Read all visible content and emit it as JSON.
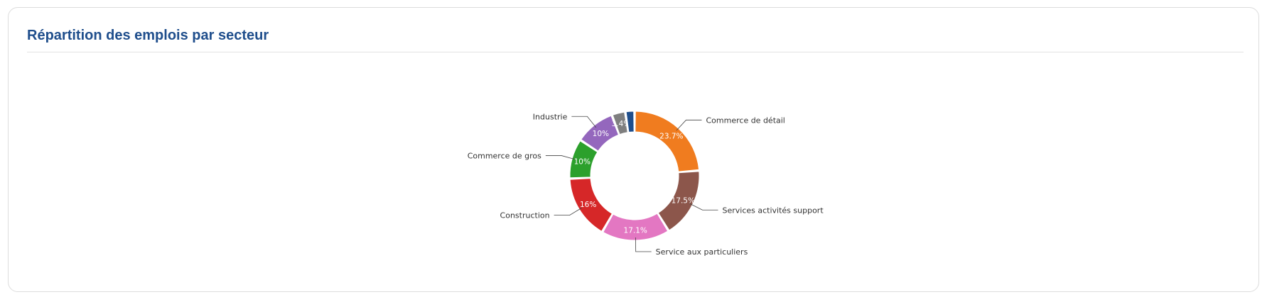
{
  "card": {
    "title": "Répartition des emplois par secteur"
  },
  "chart_data": {
    "type": "pie",
    "donut": true,
    "legend": "none",
    "categories": [
      "Commerce de détail",
      "Services activités support",
      "Service aux particuliers",
      "Construction",
      "Commerce de gros",
      "Industrie",
      "",
      ""
    ],
    "values": [
      23.7,
      17.5,
      17.1,
      16,
      10,
      10,
      3.4,
      2.3
    ],
    "value_labels": [
      "23.7%",
      "17.5%",
      "17.1%",
      "16%",
      "10%",
      "10%",
      "3.4%",
      ""
    ],
    "colors": [
      "#f07c1f",
      "#8c564b",
      "#e377c2",
      "#d62728",
      "#2ca02c",
      "#9467bd",
      "#7f7f7f",
      "#1f4e8c"
    ]
  }
}
